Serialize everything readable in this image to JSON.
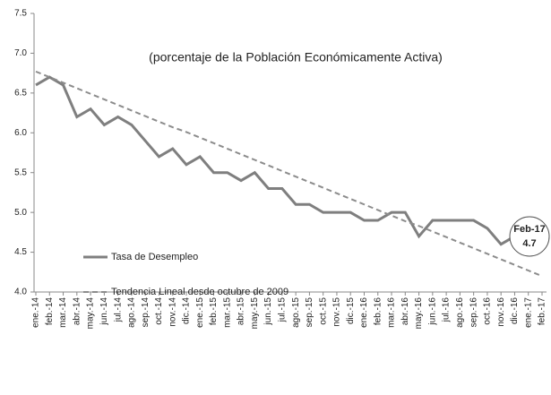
{
  "chart_data": {
    "type": "line",
    "subtitle": "(porcentaje de la Población Económicamente Activa)",
    "categories": [
      "ene.-14",
      "feb.-14",
      "mar.-14",
      "abr.-14",
      "may.-14",
      "jun.-14",
      "jul.-14",
      "ago.-14",
      "sep.-14",
      "oct.-14",
      "nov.-14",
      "dic.-14",
      "ene.-15",
      "feb.-15",
      "mar.-15",
      "abr.-15",
      "may.-15",
      "jun.-15",
      "jul.-15",
      "ago.-15",
      "sep.-15",
      "oct.-15",
      "nov.-15",
      "dic.-15",
      "ene.-16",
      "feb.-16",
      "mar.-16",
      "abr.-16",
      "may.-16",
      "jun.-16",
      "jul.-16",
      "ago.-16",
      "sep.-16",
      "oct.-16",
      "nov.-16",
      "dic.-16",
      "ene.-17",
      "feb.-17"
    ],
    "series": [
      {
        "name": "Tasa de Desempleo",
        "color": "#7f7f7f",
        "dashed": false,
        "values": [
          6.6,
          6.7,
          6.6,
          6.2,
          6.3,
          6.1,
          6.2,
          6.1,
          5.9,
          5.7,
          5.8,
          5.6,
          5.7,
          5.5,
          5.5,
          5.4,
          5.5,
          5.3,
          5.3,
          5.1,
          5.1,
          5.0,
          5.0,
          5.0,
          4.9,
          4.9,
          5.0,
          5.0,
          4.7,
          4.9,
          4.9,
          4.9,
          4.9,
          4.8,
          4.6,
          4.7,
          4.8,
          4.7
        ]
      },
      {
        "name": "Tendencia Lineal desde octubre de 2009",
        "color": "#8c8c8c",
        "dashed": true,
        "values": [
          6.77,
          6.7,
          6.63,
          6.56,
          6.49,
          6.42,
          6.35,
          6.28,
          6.21,
          6.14,
          6.07,
          6.01,
          5.94,
          5.87,
          5.8,
          5.73,
          5.66,
          5.59,
          5.52,
          5.45,
          5.38,
          5.31,
          5.24,
          5.17,
          5.1,
          5.03,
          4.96,
          4.89,
          4.83,
          4.76,
          4.69,
          4.62,
          4.55,
          4.48,
          4.41,
          4.34,
          4.27,
          4.2
        ]
      }
    ],
    "annotation": {
      "text": "Feb-17",
      "value": 4.7
    },
    "ylim": [
      4.0,
      7.5
    ],
    "yticks": [
      {
        "value": 4.0,
        "label": "4.0"
      },
      {
        "value": 4.5,
        "label": "4.5"
      },
      {
        "value": 5.0,
        "label": "5.0"
      },
      {
        "value": 5.5,
        "label": "5.5"
      },
      {
        "value": 6.0,
        "label": "6.0"
      },
      {
        "value": 6.5,
        "label": "6.5"
      },
      {
        "value": 7.0,
        "label": "7.0"
      },
      {
        "value": 7.5,
        "label": "7.5"
      }
    ],
    "grid": false
  }
}
